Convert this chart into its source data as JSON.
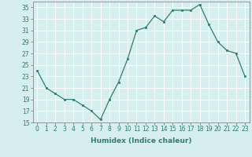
{
  "x": [
    0,
    1,
    2,
    3,
    4,
    5,
    6,
    7,
    8,
    9,
    10,
    11,
    12,
    13,
    14,
    15,
    16,
    17,
    18,
    19,
    20,
    21,
    22,
    23
  ],
  "y": [
    24,
    21,
    20,
    19,
    19,
    18,
    17,
    15.5,
    19,
    22,
    26,
    31,
    31.5,
    33.5,
    32.5,
    34.5,
    34.5,
    34.5,
    35.5,
    32,
    29,
    27.5,
    27,
    23
  ],
  "line_color": "#2e7d6e",
  "marker": "s",
  "marker_size": 1.8,
  "background_color": "#d6eeee",
  "grid_color": "#ffffff",
  "xlabel": "Humidex (Indice chaleur)",
  "xlim": [
    -0.5,
    23.5
  ],
  "ylim": [
    15,
    36
  ],
  "yticks": [
    15,
    17,
    19,
    21,
    23,
    25,
    27,
    29,
    31,
    33,
    35
  ],
  "xticks": [
    0,
    1,
    2,
    3,
    4,
    5,
    6,
    7,
    8,
    9,
    10,
    11,
    12,
    13,
    14,
    15,
    16,
    17,
    18,
    19,
    20,
    21,
    22,
    23
  ],
  "tick_label_size": 5.5,
  "xlabel_size": 6.5,
  "spine_color": "#888888"
}
